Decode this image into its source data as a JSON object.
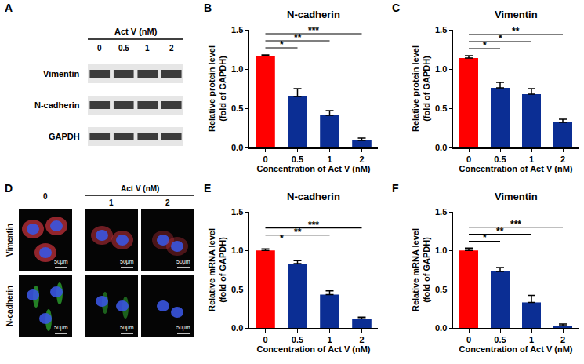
{
  "blot": {
    "panel_label": "A",
    "header": "Act V (nM)",
    "lanes": [
      "0",
      "0.5",
      "1",
      "2"
    ],
    "rows": [
      "Vimentin",
      "N-cadherin",
      "GAPDH"
    ]
  },
  "images": {
    "panel_label": "D",
    "header": "Act V (nM)",
    "columns": [
      "0",
      "1",
      "2"
    ],
    "rows": [
      "Vimentin",
      "N-cadherin"
    ],
    "scale_bar": "50μm"
  },
  "chart_data": [
    {
      "type": "bar",
      "panel_label": "B",
      "title": "N-cadherin",
      "y_label": "Relative protein level\n(fold of GAPDH)",
      "x_label": "Concentration of Act V (nM)",
      "categories": [
        "0",
        "0.5",
        "1",
        "2"
      ],
      "values": [
        1.17,
        0.65,
        0.41,
        0.09
      ],
      "errors": [
        0.01,
        0.1,
        0.06,
        0.03
      ],
      "colors": [
        "#ff0000",
        "#0b2e94",
        "#0b2e94",
        "#0b2e94"
      ],
      "ylim": [
        0,
        1.5
      ],
      "yticks": [
        {
          "value": 0,
          "label": "0.0"
        },
        0.5,
        {
          "value": 1,
          "label": "1.0"
        },
        1.5
      ],
      "annotations": [
        {
          "from": "0",
          "to": "0.5",
          "text": "*"
        },
        {
          "from": "0",
          "to": "1",
          "text": "**"
        },
        {
          "from": "0",
          "to": "2",
          "text": "***"
        }
      ]
    },
    {
      "type": "bar",
      "panel_label": "C",
      "title": "Vimentin",
      "y_label": "Relative protein level\n(fold of GAPDH)",
      "x_label": "Concentration of Act V (nM)",
      "categories": [
        "0",
        "0.5",
        "1",
        "2"
      ],
      "values": [
        1.14,
        0.76,
        0.68,
        0.32
      ],
      "errors": [
        0.03,
        0.07,
        0.07,
        0.04
      ],
      "colors": [
        "#ff0000",
        "#0b2e94",
        "#0b2e94",
        "#0b2e94"
      ],
      "ylim": [
        0,
        1.5
      ],
      "yticks": [
        {
          "value": 0,
          "label": "0.0"
        },
        0.5,
        {
          "value": 1,
          "label": "1.0"
        },
        1.5
      ],
      "annotations": [
        {
          "from": "0",
          "to": "0.5",
          "text": "*"
        },
        {
          "from": "0",
          "to": "1",
          "text": "*"
        },
        {
          "from": "0",
          "to": "2",
          "text": "**"
        }
      ]
    },
    {
      "type": "bar",
      "panel_label": "E",
      "title": "N-cadherin",
      "y_label": "Relative mRNA level\n(fold of GAPDH)",
      "x_label": "Concentration of Act V (nM)",
      "categories": [
        "0",
        "0.5",
        "1",
        "2"
      ],
      "values": [
        1.0,
        0.83,
        0.43,
        0.12
      ],
      "errors": [
        0.02,
        0.04,
        0.05,
        0.02
      ],
      "colors": [
        "#ff0000",
        "#0b2e94",
        "#0b2e94",
        "#0b2e94"
      ],
      "ylim": [
        0,
        1.5
      ],
      "yticks": [
        {
          "value": 0,
          "label": "0.0"
        },
        0.5,
        {
          "value": 1,
          "label": "1.0"
        },
        1.5
      ],
      "annotations": [
        {
          "from": "0",
          "to": "0.5",
          "text": "*"
        },
        {
          "from": "0",
          "to": "1",
          "text": "**"
        },
        {
          "from": "0",
          "to": "2",
          "text": "***"
        }
      ]
    },
    {
      "type": "bar",
      "panel_label": "F",
      "title": "Vimentin",
      "y_label": "Relative mRNA level\n(fold of GAPDH)",
      "x_label": "Concentration of Act V (nM)",
      "categories": [
        "0",
        "0.5",
        "1",
        "2"
      ],
      "values": [
        1.0,
        0.73,
        0.33,
        0.03
      ],
      "errors": [
        0.03,
        0.05,
        0.09,
        0.02
      ],
      "colors": [
        "#ff0000",
        "#0b2e94",
        "#0b2e94",
        "#0b2e94"
      ],
      "ylim": [
        0,
        1.5
      ],
      "yticks": [
        {
          "value": 0,
          "label": "0.0"
        },
        0.5,
        {
          "value": 1,
          "label": "1.0"
        },
        1.5
      ],
      "annotations": [
        {
          "from": "0",
          "to": "0.5",
          "text": "*"
        },
        {
          "from": "0",
          "to": "1",
          "text": "**"
        },
        {
          "from": "0",
          "to": "2",
          "text": "***"
        }
      ]
    }
  ]
}
